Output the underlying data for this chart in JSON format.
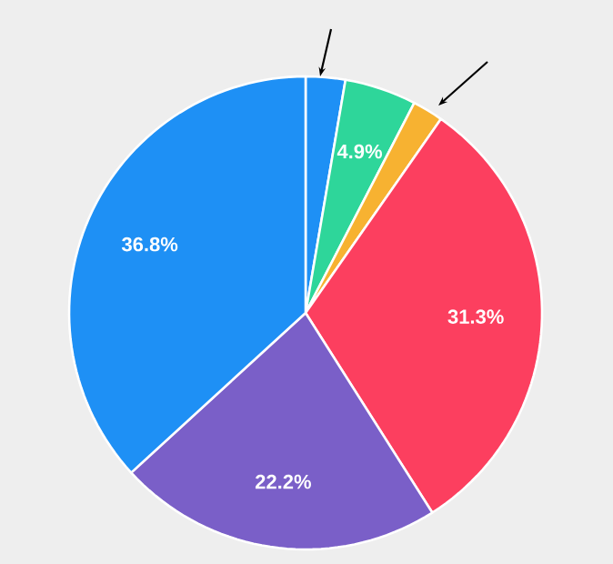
{
  "chart_data": {
    "type": "pie",
    "categories": [
      null,
      null,
      null,
      null,
      null,
      null
    ],
    "values": [
      2.7,
      4.9,
      2.1,
      31.3,
      22.2,
      36.8
    ],
    "value_labels": [
      null,
      "4.9%",
      null,
      "31.3%",
      "22.2%",
      "36.8%"
    ],
    "colors": [
      "#1e90f5",
      "#2ed69a",
      "#f7b231",
      "#fc3f5f",
      "#7a5fc8",
      "#1e90f5"
    ]
  }
}
